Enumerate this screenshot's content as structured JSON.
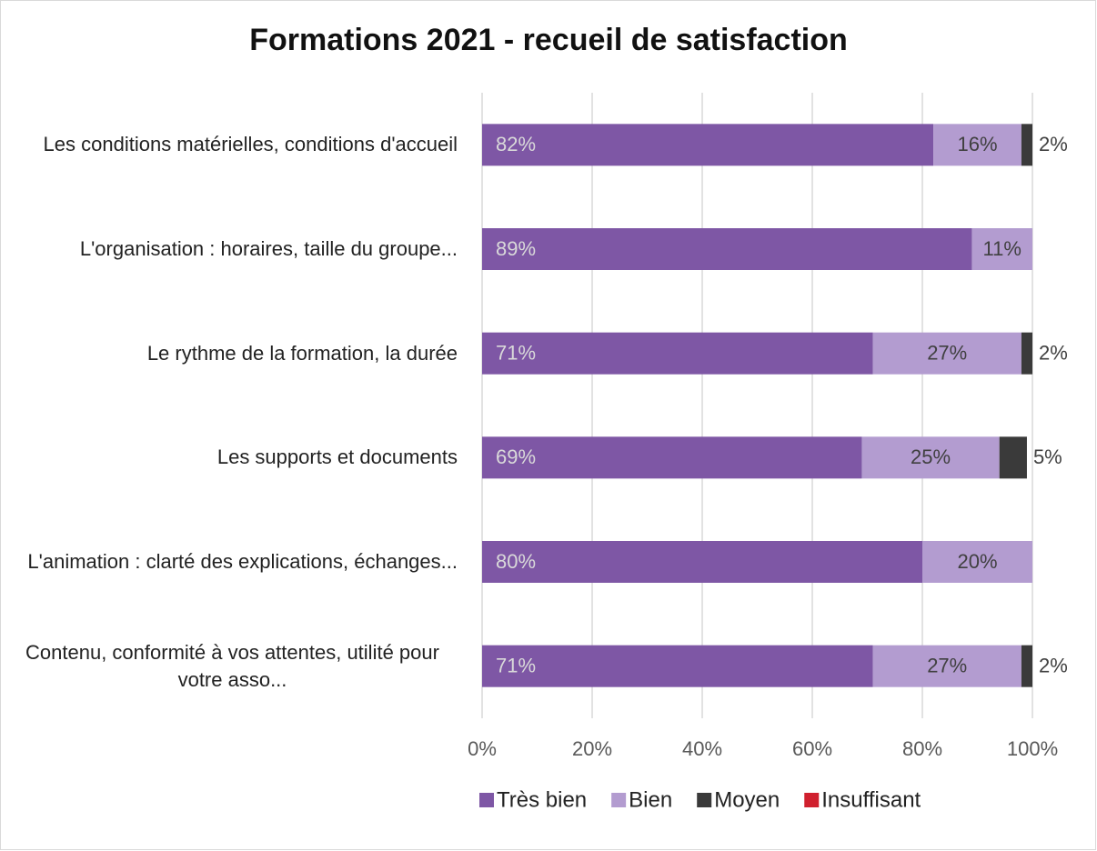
{
  "chart_data": {
    "type": "stacked-bar-horizontal",
    "title": "Formations 2021 - recueil de satisfaction",
    "categories": [
      "Les conditions matérielles, conditions d'accueil",
      "L'organisation : horaires, taille du groupe...",
      "Le rythme de la formation, la durée",
      "Les supports et documents",
      "L'animation : clarté des explications, échanges...",
      "Contenu, conformité à vos attentes, utilité pour votre asso..."
    ],
    "series": [
      {
        "name": "Très bien",
        "color": "#7e57a5",
        "values": [
          82,
          89,
          71,
          69,
          80,
          71
        ],
        "value_labels": [
          "82%",
          "89%",
          "71%",
          "69%",
          "80%",
          "71%"
        ]
      },
      {
        "name": "Bien",
        "color": "#b39cd0",
        "values": [
          16,
          11,
          27,
          25,
          20,
          27
        ],
        "value_labels": [
          "16%",
          "11%",
          "27%",
          "25%",
          "20%",
          "27%"
        ]
      },
      {
        "name": "Moyen",
        "color": "#3a3a3a",
        "values": [
          2,
          0,
          2,
          5,
          0,
          2
        ],
        "value_labels": [
          "2%",
          null,
          "2%",
          "5%",
          null,
          "2%"
        ]
      },
      {
        "name": "Insuffisant",
        "color": "#d0202e",
        "values": [
          0,
          0,
          0,
          0,
          0,
          0
        ]
      }
    ],
    "xlim": [
      0,
      100
    ],
    "xticks": [
      {
        "value": 0,
        "label": "0%"
      },
      {
        "value": 20,
        "label": "20%"
      },
      {
        "value": 40,
        "label": "40%"
      },
      {
        "value": 60,
        "label": "60%"
      },
      {
        "value": 80,
        "label": "80%"
      },
      {
        "value": 100,
        "label": "100%"
      }
    ],
    "grid": true,
    "legend": "bottom"
  }
}
